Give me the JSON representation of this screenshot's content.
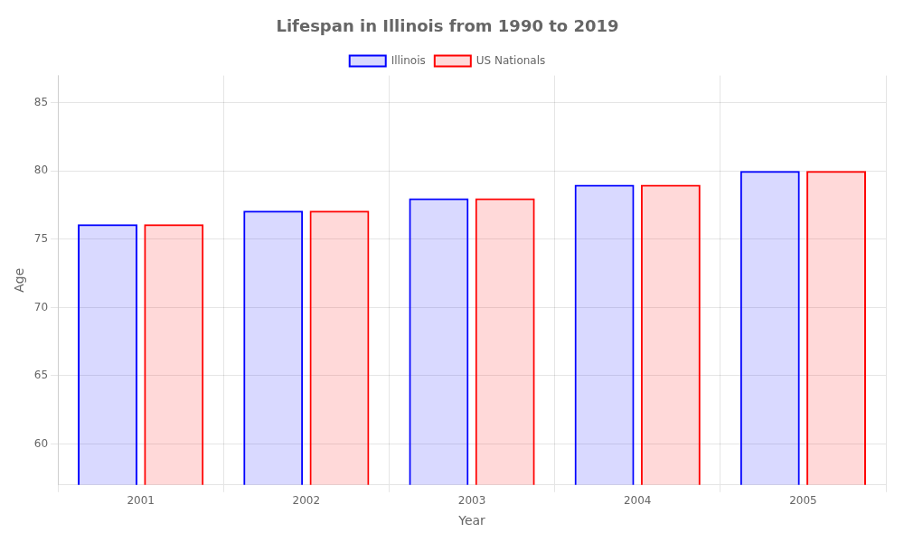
{
  "chart_data": {
    "type": "bar",
    "title": "Lifespan in Illinois from 1990 to 2019",
    "x_label": "Year",
    "y_label": "Age",
    "categories": [
      "2001",
      "2002",
      "2003",
      "2004",
      "2005"
    ],
    "series": [
      {
        "name": "Illinois",
        "color": "#0000ff",
        "values": [
          76.1,
          77.1,
          78.0,
          79.0,
          80.0
        ]
      },
      {
        "name": "US Nationals",
        "color": "#ff0000",
        "values": [
          76.1,
          77.1,
          78.0,
          79.0,
          80.0
        ]
      }
    ],
    "ylim": [
      57,
      87
    ],
    "yticks": [
      60,
      65,
      70,
      75,
      80,
      85
    ],
    "grid": true,
    "legend": "top"
  }
}
